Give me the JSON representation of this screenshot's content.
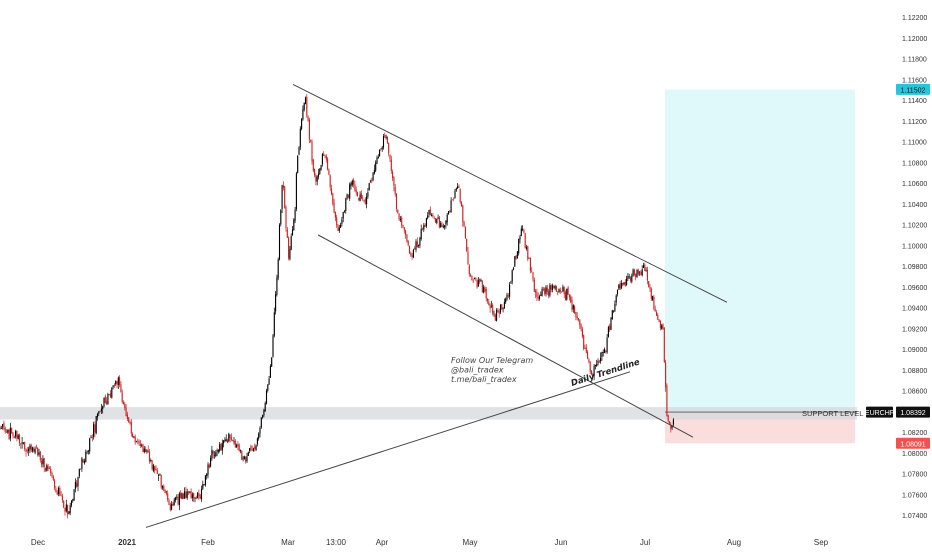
{
  "chart_data": {
    "type": "candlestick",
    "symbol": "EURCHF",
    "x_axis": {
      "ticks": [
        "Dec",
        "2021",
        "Feb",
        "Mar",
        "13:00",
        "Apr",
        "May",
        "Jun",
        "Jul",
        "Aug",
        "Sep"
      ]
    },
    "y_axis": {
      "position": "right",
      "ylim": [
        1.073,
        1.1225
      ],
      "ticks": [
        "1.12200",
        "1.12000",
        "1.11800",
        "1.11600",
        "1.11400",
        "1.11200",
        "1.11000",
        "1.10800",
        "1.10600",
        "1.10400",
        "1.10200",
        "1.10000",
        "1.09800",
        "1.09600",
        "1.09400",
        "1.09200",
        "1.09000",
        "1.08800",
        "1.08600",
        "1.08400",
        "1.08200",
        "1.08000",
        "1.07800",
        "1.07600",
        "1.07400"
      ]
    },
    "grid": false,
    "price_path": [
      {
        "t": 0,
        "v": 1.0825
      },
      {
        "t": 20,
        "v": 1.081
      },
      {
        "t": 38,
        "v": 1.08
      },
      {
        "t": 52,
        "v": 1.0775
      },
      {
        "t": 68,
        "v": 1.0742
      },
      {
        "t": 82,
        "v": 1.079
      },
      {
        "t": 100,
        "v": 1.0842
      },
      {
        "t": 118,
        "v": 1.087
      },
      {
        "t": 132,
        "v": 1.0815
      },
      {
        "t": 148,
        "v": 1.08
      },
      {
        "t": 160,
        "v": 1.0775
      },
      {
        "t": 170,
        "v": 1.0748
      },
      {
        "t": 185,
        "v": 1.076
      },
      {
        "t": 200,
        "v": 1.0758
      },
      {
        "t": 212,
        "v": 1.08
      },
      {
        "t": 230,
        "v": 1.0815
      },
      {
        "t": 245,
        "v": 1.0795
      },
      {
        "t": 258,
        "v": 1.081
      },
      {
        "t": 270,
        "v": 1.088
      },
      {
        "t": 278,
        "v": 1.099
      },
      {
        "t": 283,
        "v": 1.107
      },
      {
        "t": 288,
        "v": 1.098
      },
      {
        "t": 293,
        "v": 1.102
      },
      {
        "t": 300,
        "v": 1.111
      },
      {
        "t": 305,
        "v": 1.1145
      },
      {
        "t": 315,
        "v": 1.106
      },
      {
        "t": 325,
        "v": 1.109
      },
      {
        "t": 338,
        "v": 1.101
      },
      {
        "t": 350,
        "v": 1.106
      },
      {
        "t": 365,
        "v": 1.104
      },
      {
        "t": 385,
        "v": 1.111
      },
      {
        "t": 398,
        "v": 1.103
      },
      {
        "t": 412,
        "v": 1.099
      },
      {
        "t": 428,
        "v": 1.103
      },
      {
        "t": 445,
        "v": 1.102
      },
      {
        "t": 458,
        "v": 1.106
      },
      {
        "t": 470,
        "v": 1.097
      },
      {
        "t": 482,
        "v": 1.096
      },
      {
        "t": 495,
        "v": 1.093
      },
      {
        "t": 508,
        "v": 1.095
      },
      {
        "t": 522,
        "v": 1.102
      },
      {
        "t": 535,
        "v": 1.095
      },
      {
        "t": 552,
        "v": 1.096
      },
      {
        "t": 568,
        "v": 1.095
      },
      {
        "t": 580,
        "v": 1.092
      },
      {
        "t": 592,
        "v": 1.0875
      },
      {
        "t": 605,
        "v": 1.09
      },
      {
        "t": 618,
        "v": 1.096
      },
      {
        "t": 632,
        "v": 1.097
      },
      {
        "t": 645,
        "v": 1.098
      },
      {
        "t": 655,
        "v": 1.0935
      },
      {
        "t": 663,
        "v": 1.092
      },
      {
        "t": 667,
        "v": 1.0835
      },
      {
        "t": 671,
        "v": 1.0825
      },
      {
        "t": 674,
        "v": 1.0839
      }
    ],
    "trendlines": [
      {
        "name": "channel-top-line",
        "label": "",
        "points": [
          {
            "t": 293,
            "v": 1.1155
          },
          {
            "t": 727,
            "v": 1.0945
          }
        ]
      },
      {
        "name": "channel-bottom-line",
        "label": "",
        "points": [
          {
            "t": 318,
            "v": 1.101
          },
          {
            "t": 693,
            "v": 1.0815
          }
        ]
      },
      {
        "name": "daily-trendline",
        "label": "Daily Trendline",
        "points": [
          {
            "t": 146,
            "v": 1.0728
          },
          {
            "t": 630,
            "v": 1.0878
          }
        ]
      }
    ],
    "support": {
      "label": "SUPPORT LEVEL",
      "value": 1.08392,
      "band_low": 1.0832,
      "band_high": 1.0844
    },
    "position": {
      "x_start": 665,
      "x_end": 855,
      "entry": 1.08392,
      "target": 1.11502,
      "stop": 1.08091,
      "profit_color": "#b9f0f5",
      "loss_color": "#f6c8c8"
    },
    "price_labels": [
      {
        "name": "target-price-label",
        "text": "1.11502",
        "value": 1.11502,
        "bg": "#26c6da",
        "fg": "#111111"
      },
      {
        "name": "current-price-label",
        "text": "1.08392",
        "value": 1.08392,
        "bg": "#111111",
        "fg": "#ffffff"
      },
      {
        "name": "stop-price-label",
        "text": "1.08091",
        "value": 1.08091,
        "bg": "#ef5350",
        "fg": "#ffffff"
      }
    ],
    "annotation_lines": [
      "Follow Our Telegram",
      "@bali_tradex",
      "t.me/bali_tradex"
    ],
    "colors": {
      "candle_up": "#000000",
      "candle_down": "#d01c1c",
      "line": "#444444",
      "axis_text": "#333333"
    }
  }
}
